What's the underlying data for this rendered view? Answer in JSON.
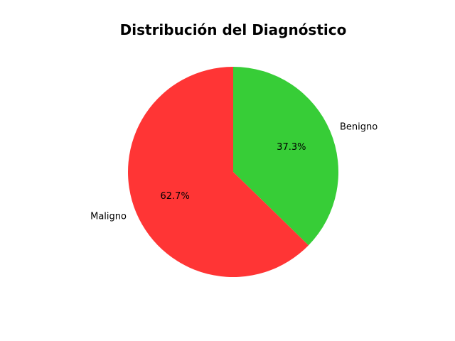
{
  "chart_data": {
    "type": "pie",
    "title": "Distribución del Diagnóstico",
    "categories": [
      "Benigno",
      "Maligno"
    ],
    "values": [
      37.3,
      62.7
    ],
    "percent_labels": [
      "37.3%",
      "62.7%"
    ],
    "colors": [
      "#37cd37",
      "#ff3535"
    ],
    "start_angle_deg": 90,
    "direction": "clockwise"
  }
}
